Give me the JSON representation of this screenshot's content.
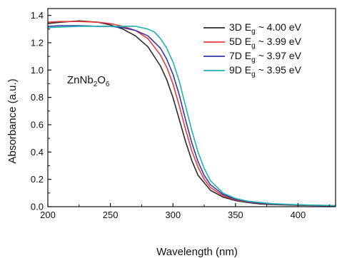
{
  "chart_data": {
    "type": "line",
    "xlabel": "Wavelength (nm)",
    "ylabel": "Absorbance (a.u.)",
    "xlim": [
      200,
      430
    ],
    "ylim": [
      0.0,
      1.45
    ],
    "xticks": [
      200,
      250,
      300,
      350,
      400
    ],
    "yticks": [
      0.0,
      0.2,
      0.4,
      0.6,
      0.8,
      1.0,
      1.2,
      1.4
    ],
    "xtick_labels": [
      "200",
      "250",
      "300",
      "350",
      "400"
    ],
    "ytick_labels": [
      "0.0",
      "0.2",
      "0.4",
      "0.6",
      "0.8",
      "1.0",
      "1.2",
      "1.4"
    ],
    "grid": false,
    "legend_position": "top-right",
    "annotation": {
      "base": "ZnNb",
      "sub1": "2",
      "mid": "O",
      "sub2": "6"
    },
    "series": [
      {
        "legend_prefix": "3D E",
        "legend_sub": "g",
        "legend_suffix": " ~ 4.00 eV",
        "color": "#2b2b2b",
        "x": [
          200,
          210,
          225,
          240,
          250,
          260,
          270,
          280,
          290,
          295,
          300,
          305,
          310,
          315,
          320,
          330,
          340,
          350,
          360,
          370,
          380,
          400,
          430
        ],
        "y": [
          1.34,
          1.35,
          1.36,
          1.35,
          1.33,
          1.3,
          1.25,
          1.17,
          1.03,
          0.93,
          0.8,
          0.64,
          0.48,
          0.34,
          0.23,
          0.12,
          0.07,
          0.045,
          0.03,
          0.02,
          0.015,
          0.01,
          0.005
        ]
      },
      {
        "legend_prefix": "5D E",
        "legend_sub": "g",
        "legend_suffix": " ~ 3.99 eV",
        "color": "#e8383d",
        "x": [
          200,
          210,
          225,
          240,
          250,
          260,
          270,
          280,
          290,
          295,
          300,
          305,
          310,
          315,
          320,
          325,
          330,
          340,
          350,
          360,
          370,
          380,
          400,
          430
        ],
        "y": [
          1.35,
          1.355,
          1.355,
          1.35,
          1.34,
          1.32,
          1.29,
          1.23,
          1.11,
          1.02,
          0.9,
          0.74,
          0.57,
          0.41,
          0.29,
          0.2,
          0.14,
          0.08,
          0.05,
          0.035,
          0.025,
          0.018,
          0.012,
          0.006
        ]
      },
      {
        "legend_prefix": "7D E",
        "legend_sub": "g",
        "legend_suffix": " ~ 3.97 eV",
        "color": "#3535a6",
        "x": [
          200,
          210,
          225,
          240,
          250,
          260,
          270,
          280,
          290,
          295,
          300,
          305,
          310,
          315,
          320,
          325,
          330,
          340,
          350,
          360,
          370,
          380,
          400,
          430
        ],
        "y": [
          1.32,
          1.325,
          1.325,
          1.32,
          1.32,
          1.31,
          1.29,
          1.25,
          1.16,
          1.08,
          0.97,
          0.82,
          0.64,
          0.47,
          0.33,
          0.23,
          0.16,
          0.09,
          0.055,
          0.037,
          0.027,
          0.02,
          0.013,
          0.007
        ]
      },
      {
        "legend_prefix": "9D E",
        "legend_sub": "g",
        "legend_suffix": " ~ 3.95 eV",
        "color": "#1fb3ad",
        "x": [
          200,
          210,
          225,
          240,
          250,
          260,
          270,
          280,
          285,
          290,
          295,
          300,
          305,
          310,
          315,
          320,
          325,
          330,
          340,
          350,
          360,
          370,
          380,
          400,
          430
        ],
        "y": [
          1.31,
          1.315,
          1.32,
          1.32,
          1.32,
          1.32,
          1.32,
          1.3,
          1.28,
          1.23,
          1.16,
          1.06,
          0.92,
          0.74,
          0.56,
          0.4,
          0.28,
          0.19,
          0.1,
          0.06,
          0.04,
          0.03,
          0.022,
          0.014,
          0.008
        ]
      }
    ]
  }
}
